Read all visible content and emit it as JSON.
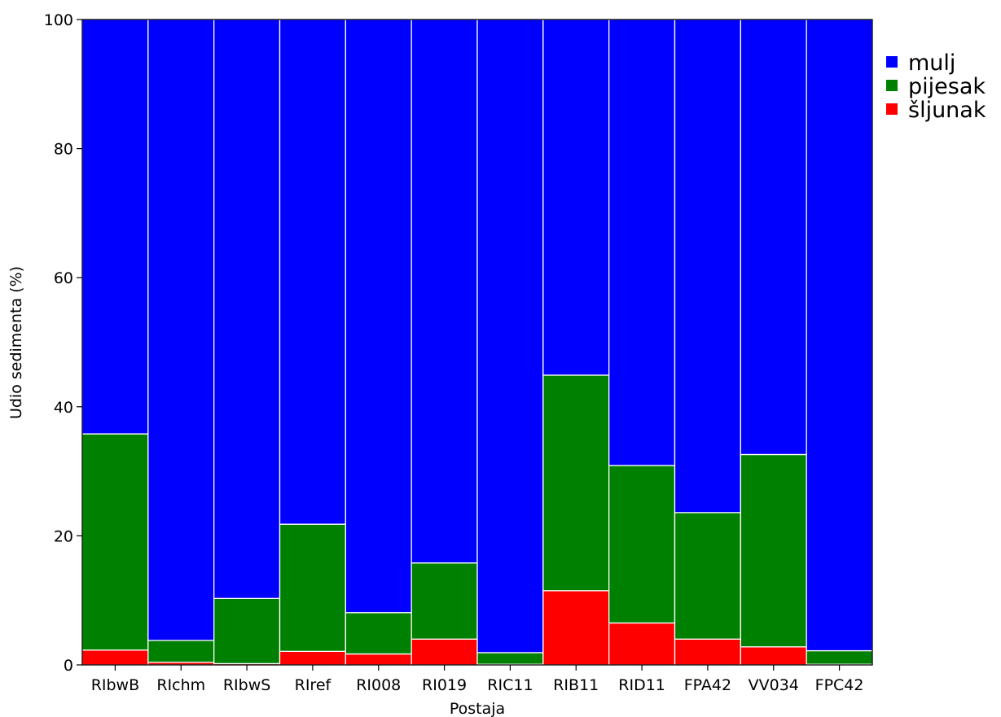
{
  "chart_data": {
    "type": "bar",
    "stacked": true,
    "xlabel": "Postaja",
    "ylabel": "Udio sedimenta (%)",
    "ylim": [
      0,
      100
    ],
    "yticks": [
      0,
      20,
      40,
      60,
      80,
      100
    ],
    "grid": false,
    "legend_position": "outside-right-top",
    "categories": [
      "RIbwB",
      "RIchm",
      "RIbwS",
      "RIref",
      "RI008",
      "RI019",
      "RIC11",
      "RIB11",
      "RID11",
      "FPA42",
      "VV034",
      "FPC42"
    ],
    "series": [
      {
        "name": "šljunak",
        "color": "#ff0000",
        "values": [
          2.3,
          0.4,
          0.2,
          2.1,
          1.7,
          4.0,
          0.1,
          11.5,
          6.5,
          4.0,
          2.8,
          0.1
        ]
      },
      {
        "name": "pijesak",
        "color": "#008000",
        "values": [
          33.5,
          3.4,
          10.1,
          19.7,
          6.4,
          11.8,
          1.8,
          33.4,
          24.4,
          19.6,
          29.8,
          2.1
        ]
      },
      {
        "name": "mulj",
        "color": "#0000ff",
        "values": [
          64.2,
          96.2,
          89.7,
          78.2,
          91.9,
          84.2,
          98.1,
          55.1,
          69.1,
          76.4,
          67.4,
          97.8
        ]
      }
    ],
    "legend_order": [
      "mulj",
      "pijesak",
      "šljunak"
    ]
  }
}
